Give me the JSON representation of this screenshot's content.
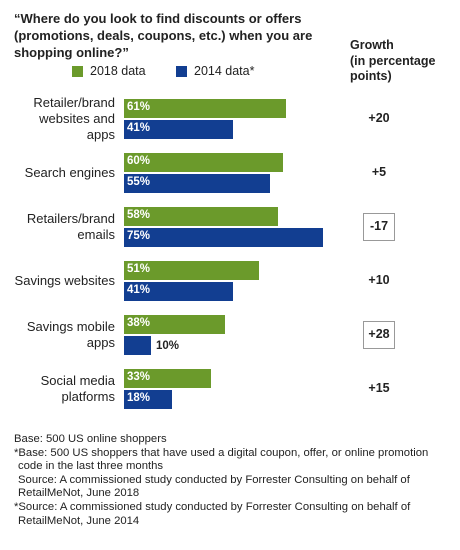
{
  "title": "“Where do you look to find discounts or offers (promotions, deals, coupons, etc.) when you are shopping online?”",
  "growth_header": [
    "Growth",
    "(in percentage",
    "points)"
  ],
  "colors": {
    "series2018": "#6b9a2b",
    "series2014": "#123e91"
  },
  "chart_data": {
    "type": "bar",
    "orientation": "horizontal",
    "categories": [
      [
        "Retailer/brand",
        "websites and",
        "apps"
      ],
      [
        "Search engines"
      ],
      [
        "Retailers/brand",
        "emails"
      ],
      [
        "Savings websites"
      ],
      [
        "Savings mobile",
        "apps"
      ],
      [
        "Social media",
        "platforms"
      ]
    ],
    "series": [
      {
        "name": "2018 data",
        "values": [
          61,
          60,
          58,
          51,
          38,
          33
        ],
        "labels": [
          "61%",
          "60%",
          "58%",
          "51%",
          "38%",
          "33%"
        ]
      },
      {
        "name": "2014 data*",
        "values": [
          41,
          55,
          75,
          41,
          10,
          18
        ],
        "labels": [
          "41%",
          "55%",
          "75%",
          "41%",
          "10%",
          "18%"
        ]
      }
    ],
    "growth": [
      "+20",
      "+5",
      "-17",
      "+10",
      "+28",
      "+15"
    ],
    "growth_boxed": [
      false,
      false,
      true,
      false,
      true,
      false
    ],
    "xlim": [
      0,
      100
    ]
  },
  "footnotes": [
    "Base: 500 US online shoppers",
    "*Base: 500 US shoppers that have used a digital coupon, offer, or online promotion",
    "code in the last three months",
    "Source: A commissioned study conducted by Forrester Consulting on behalf of",
    "RetailMeNot, June 2018",
    "*Source: A commissioned study conducted by Forrester Consulting on behalf of",
    "RetailMeNot, June 2014"
  ]
}
